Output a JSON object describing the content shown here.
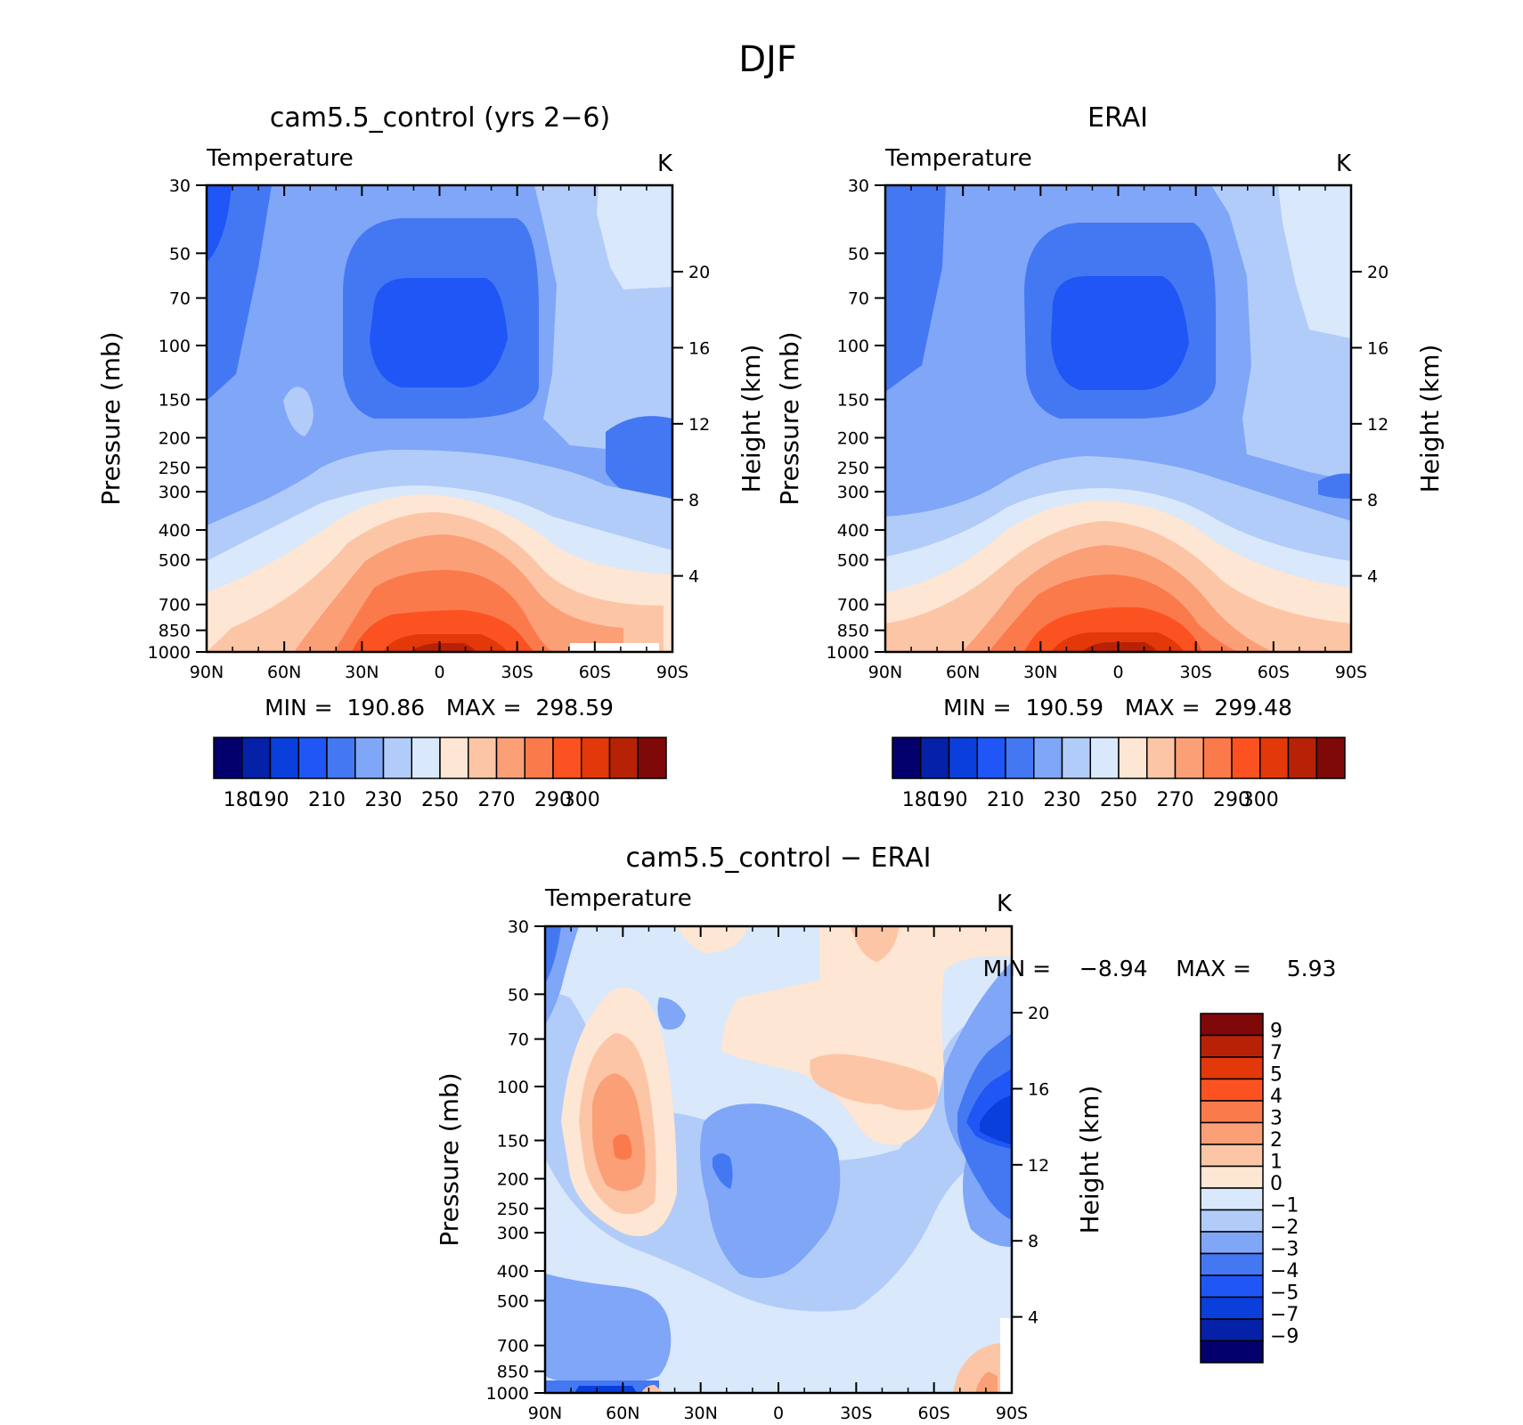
{
  "figure": {
    "title": "DJF"
  },
  "panel_labels": {
    "p1": {
      "title": "cam5.5_control (yrs 2−6)",
      "left": "Temperature",
      "right": "K",
      "ylabel": "Pressure (mb)",
      "y2label": "Height (km)",
      "minmax": "MIN =  190.86   MAX =  298.59"
    },
    "p2": {
      "title": "ERAI",
      "left": "Temperature",
      "right": "K",
      "ylabel": "Pressure (mb)",
      "y2label": "Height (km)",
      "minmax": "MIN =  190.59   MAX =  299.48"
    },
    "p3": {
      "title": "cam5.5_control − ERAI",
      "left": "Temperature",
      "right": "K",
      "ylabel": "Pressure (mb)",
      "y2label": "Height (km)",
      "minmax": "MIN =    −8.94    MAX =     5.93"
    }
  },
  "chart_data": [
    {
      "type": "heatmap",
      "title": "cam5.5_control (yrs 2−6)",
      "field": "Temperature",
      "units": "K",
      "ylabel": "Pressure (mb)",
      "y2label": "Height (km)",
      "x_ticks": [
        "90N",
        "60N",
        "30N",
        "0",
        "30S",
        "60S",
        "90S"
      ],
      "x_values": [
        -90,
        -60,
        -30,
        0,
        30,
        60,
        90
      ],
      "y_ticks": [
        30,
        50,
        70,
        100,
        150,
        200,
        250,
        300,
        400,
        500,
        700,
        850,
        1000
      ],
      "y2_ticks": [
        4,
        8,
        12,
        16,
        20
      ],
      "ylim": [
        1000,
        30
      ],
      "log_scale_y": true,
      "min": 190.86,
      "max": 298.59,
      "levels": [
        180,
        190,
        200,
        210,
        220,
        230,
        240,
        250,
        260,
        270,
        280,
        290,
        300
      ],
      "colorbar_labels": [
        "180",
        "190",
        "210",
        "230",
        "250",
        "270",
        "290",
        "300"
      ],
      "colors": [
        "#03006d",
        "#0521a8",
        "#0a3fdc",
        "#1f56f5",
        "#4478f3",
        "#7fa6f7",
        "#b2ccf9",
        "#d9e8fb",
        "#fde6d3",
        "#fcc6a6",
        "#fb9f77",
        "#fb7a4c",
        "#fc5221",
        "#e33809",
        "#b72206",
        "#7f0808"
      ],
      "approx_structure": "tropical tropopause min ~190 K near 100 mb over equator; surface max ~299 K near equator"
    },
    {
      "type": "heatmap",
      "title": "ERAI",
      "field": "Temperature",
      "units": "K",
      "ylabel": "Pressure (mb)",
      "y2label": "Height (km)",
      "x_ticks": [
        "90N",
        "60N",
        "30N",
        "0",
        "30S",
        "60S",
        "90S"
      ],
      "x_values": [
        -90,
        -60,
        -30,
        0,
        30,
        60,
        90
      ],
      "y_ticks": [
        30,
        50,
        70,
        100,
        150,
        200,
        250,
        300,
        400,
        500,
        700,
        850,
        1000
      ],
      "y2_ticks": [
        4,
        8,
        12,
        16,
        20
      ],
      "ylim": [
        1000,
        30
      ],
      "log_scale_y": true,
      "min": 190.59,
      "max": 299.48,
      "levels": [
        180,
        190,
        200,
        210,
        220,
        230,
        240,
        250,
        260,
        270,
        280,
        290,
        300
      ],
      "colorbar_labels": [
        "180",
        "190",
        "210",
        "230",
        "250",
        "270",
        "290",
        "300"
      ],
      "colors": [
        "#03006d",
        "#0521a8",
        "#0a3fdc",
        "#1f56f5",
        "#4478f3",
        "#7fa6f7",
        "#b2ccf9",
        "#d9e8fb",
        "#fde6d3",
        "#fcc6a6",
        "#fb9f77",
        "#fb7a4c",
        "#fc5221",
        "#e33809",
        "#b72206",
        "#7f0808"
      ]
    },
    {
      "type": "heatmap",
      "title": "cam5.5_control − ERAI",
      "field": "Temperature",
      "units": "K",
      "ylabel": "Pressure (mb)",
      "y2label": "Height (km)",
      "x_ticks": [
        "90N",
        "60N",
        "30N",
        "0",
        "30S",
        "60S",
        "90S"
      ],
      "x_values": [
        -90,
        -60,
        -30,
        0,
        30,
        60,
        90
      ],
      "y_ticks": [
        30,
        50,
        70,
        100,
        150,
        200,
        250,
        300,
        400,
        500,
        700,
        850,
        1000
      ],
      "y2_ticks": [
        4,
        8,
        12,
        16,
        20
      ],
      "ylim": [
        1000,
        30
      ],
      "log_scale_y": true,
      "min": -8.94,
      "max": 5.93,
      "levels": [
        -9,
        -7,
        -5,
        -4,
        -3,
        -2,
        -1,
        0,
        1,
        2,
        3,
        4,
        5,
        7,
        9
      ],
      "colorbar_labels": [
        "9",
        "7",
        "5",
        "4",
        "3",
        "2",
        "1",
        "0",
        "−1",
        "−2",
        "−3",
        "−4",
        "−5",
        "−7",
        "−9"
      ],
      "colors": [
        "#7f0808",
        "#b72206",
        "#e33809",
        "#fc5221",
        "#fb7a4c",
        "#fb9f77",
        "#fcc6a6",
        "#fde6d3",
        "#d9e8fb",
        "#b2ccf9",
        "#7fa6f7",
        "#4478f3",
        "#1f56f5",
        "#0a3fdc",
        "#0521a8",
        "#03006d"
      ]
    }
  ]
}
